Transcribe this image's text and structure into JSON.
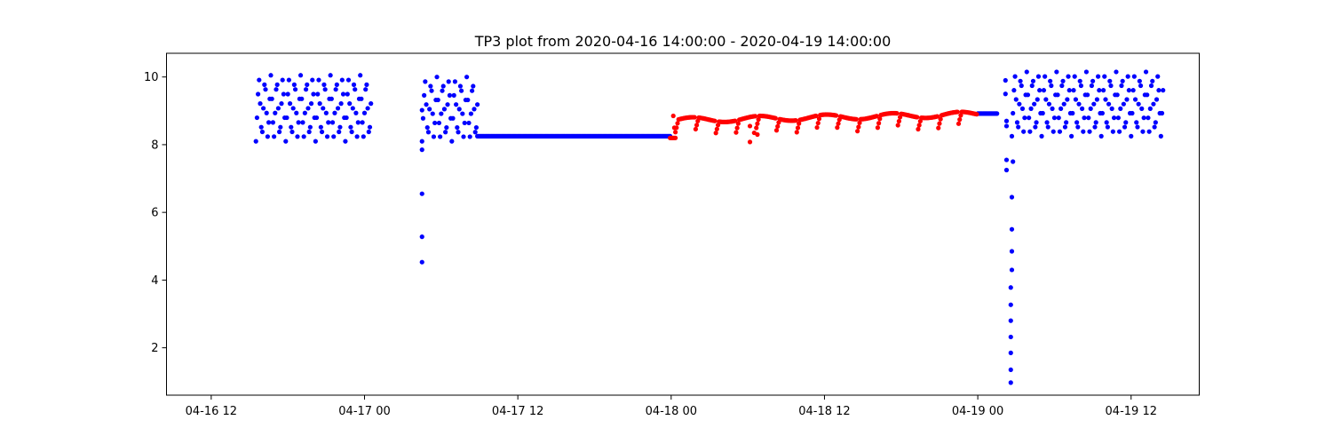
{
  "chart_data": {
    "type": "scatter",
    "title": "TP3 plot from 2020-04-16 14:00:00 - 2020-04-19 14:00:00",
    "xlabel": "",
    "ylabel": "",
    "x_axis": {
      "type": "datetime",
      "range": [
        "2020-04-16T08:30:00",
        "2020-04-19T17:20:00"
      ],
      "ticks": [
        {
          "value": "2020-04-16T12:00:00",
          "label": "04-16 12"
        },
        {
          "value": "2020-04-17T00:00:00",
          "label": "04-17 00"
        },
        {
          "value": "2020-04-17T12:00:00",
          "label": "04-17 12"
        },
        {
          "value": "2020-04-18T00:00:00",
          "label": "04-18 00"
        },
        {
          "value": "2020-04-18T12:00:00",
          "label": "04-18 12"
        },
        {
          "value": "2020-04-19T00:00:00",
          "label": "04-19 00"
        },
        {
          "value": "2020-04-19T12:00:00",
          "label": "04-19 12"
        }
      ]
    },
    "y_axis": {
      "range": [
        0.6,
        10.7
      ],
      "ticks": [
        2,
        4,
        6,
        8,
        10
      ]
    },
    "grid": false,
    "legend": "none",
    "series": [
      {
        "color": "#0000ff",
        "segments": [
          {
            "kind": "oscillation",
            "start": "2020-04-16T15:30:00",
            "end": "2020-04-17T00:30:00",
            "min": 8.1,
            "max": 10.05,
            "period_minutes": 28
          },
          {
            "kind": "oscillation",
            "start": "2020-04-17T04:30:00",
            "end": "2020-04-17T08:50:00",
            "min": 8.1,
            "max": 10.0,
            "period_minutes": 28
          },
          {
            "kind": "flat",
            "start": "2020-04-17T08:50:00",
            "end": "2020-04-17T23:55:00",
            "value": 8.25
          },
          {
            "kind": "flat",
            "start": "2020-04-19T00:00:00",
            "end": "2020-04-19T01:30:00",
            "value": 8.92
          },
          {
            "kind": "oscillation",
            "start": "2020-04-19T02:40:00",
            "end": "2020-04-19T14:30:00",
            "min": 8.25,
            "max": 10.15,
            "period_minutes": 28
          }
        ],
        "points": [
          {
            "x": "2020-04-17T04:30:00",
            "y": 9.02
          },
          {
            "x": "2020-04-17T04:30:00",
            "y": 7.85
          },
          {
            "x": "2020-04-17T04:30:00",
            "y": 6.55
          },
          {
            "x": "2020-04-17T04:30:00",
            "y": 5.28
          },
          {
            "x": "2020-04-17T04:30:00",
            "y": 4.53
          },
          {
            "x": "2020-04-19T02:10:00",
            "y": 9.9
          },
          {
            "x": "2020-04-19T02:10:00",
            "y": 9.5
          },
          {
            "x": "2020-04-19T02:15:00",
            "y": 8.7
          },
          {
            "x": "2020-04-19T02:15:00",
            "y": 8.55
          },
          {
            "x": "2020-04-19T02:15:00",
            "y": 7.55
          },
          {
            "x": "2020-04-19T02:15:00",
            "y": 7.25
          },
          {
            "x": "2020-04-19T02:45:00",
            "y": 7.5
          },
          {
            "x": "2020-04-19T02:40:00",
            "y": 6.45
          },
          {
            "x": "2020-04-19T02:40:00",
            "y": 5.5
          },
          {
            "x": "2020-04-19T02:40:00",
            "y": 4.85
          },
          {
            "x": "2020-04-19T02:40:00",
            "y": 4.3
          },
          {
            "x": "2020-04-19T02:35:00",
            "y": 3.78
          },
          {
            "x": "2020-04-19T02:35:00",
            "y": 3.27
          },
          {
            "x": "2020-04-19T02:35:00",
            "y": 2.8
          },
          {
            "x": "2020-04-19T02:35:00",
            "y": 2.32
          },
          {
            "x": "2020-04-19T02:35:00",
            "y": 1.85
          },
          {
            "x": "2020-04-19T02:35:00",
            "y": 1.35
          },
          {
            "x": "2020-04-19T02:35:00",
            "y": 0.97
          }
        ]
      },
      {
        "color": "#ff0000",
        "segments": [
          {
            "kind": "flat",
            "start": "2020-04-17T23:55:00",
            "end": "2020-04-18T00:20:00",
            "value": 8.2
          },
          {
            "kind": "wavy",
            "start": "2020-04-18T00:20:00",
            "end": "2020-04-18T23:55:00",
            "start_value": 8.72,
            "end_value": 8.9,
            "amplitude": 0.08,
            "dip_every_minutes": 95,
            "dip_depth": 0.35
          }
        ],
        "points": [
          {
            "x": "2020-04-18T00:10:00",
            "y": 8.85
          },
          {
            "x": "2020-04-18T00:15:00",
            "y": 8.5
          },
          {
            "x": "2020-04-18T06:10:00",
            "y": 8.08
          },
          {
            "x": "2020-04-18T06:10:00",
            "y": 8.55
          },
          {
            "x": "2020-04-18T06:30:00",
            "y": 8.35
          },
          {
            "x": "2020-04-18T06:45:00",
            "y": 8.3
          }
        ]
      }
    ]
  }
}
